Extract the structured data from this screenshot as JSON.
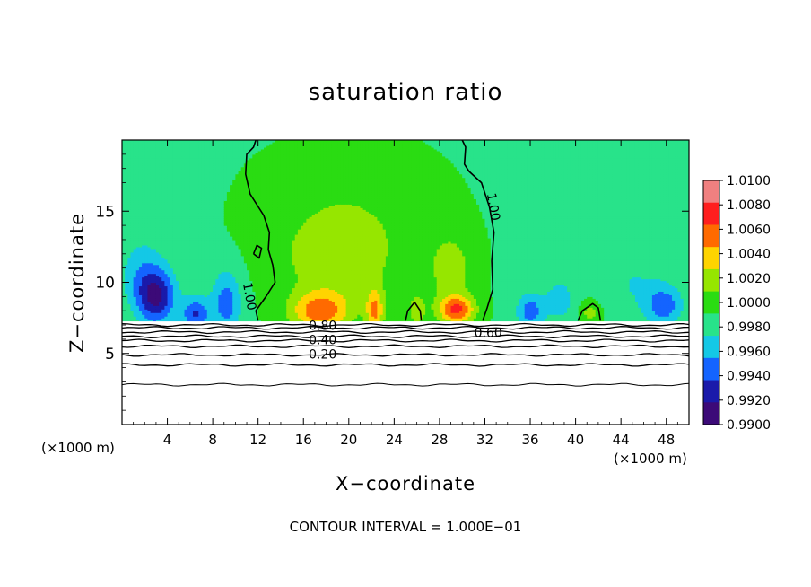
{
  "chart_data": {
    "type": "heatmap",
    "title": "saturation ratio",
    "xlabel": "X−coordinate",
    "ylabel": "Z−coordinate",
    "x_unit_label": "(×1000 m)",
    "xlim": [
      0,
      50
    ],
    "ylim": [
      0,
      20
    ],
    "x_ticks": [
      4,
      8,
      12,
      16,
      20,
      24,
      28,
      32,
      36,
      40,
      44,
      48
    ],
    "y_ticks": [
      5,
      10,
      15
    ],
    "footer": "CONTOUR INTERVAL = 1.000E−01",
    "colorbar": {
      "levels": [
        "1.0100",
        "1.0080",
        "1.0060",
        "1.0040",
        "1.0020",
        "1.0000",
        "0.9980",
        "0.9960",
        "0.9940",
        "0.9920",
        "0.9900"
      ],
      "colors": [
        "#f08080",
        "#ff1e1e",
        "#ff6a00",
        "#ffd400",
        "#96e600",
        "#2adc12",
        "#28e38a",
        "#14c8e6",
        "#1464ff",
        "#1a1aaa",
        "#3c0a78"
      ],
      "values": [
        1.01,
        1.008,
        1.006,
        1.004,
        1.002,
        1.0,
        0.998,
        0.996,
        0.994,
        0.992,
        0.99
      ]
    },
    "contour_labels": [
      {
        "text": "1.00",
        "x": 11.2,
        "z": 9.0,
        "angle": 80
      },
      {
        "text": "1.00",
        "x": 32.7,
        "z": 15.3,
        "angle": 80
      },
      {
        "text": "0.80",
        "x": 17.7,
        "z": 6.9,
        "angle": 0
      },
      {
        "text": "0.60",
        "x": 32.3,
        "z": 6.4,
        "angle": 0
      },
      {
        "text": "0.40",
        "x": 17.7,
        "z": 5.9,
        "angle": 0
      },
      {
        "text": "0.20",
        "x": 17.7,
        "z": 4.9,
        "angle": 0
      }
    ],
    "features": [
      {
        "x": 3.0,
        "z": 9.0,
        "value": 0.992,
        "sx": 1.7,
        "sz": 1.9
      },
      {
        "x": 6.5,
        "z": 7.8,
        "value": 0.994,
        "sx": 1.2,
        "sz": 1.2
      },
      {
        "x": 9.2,
        "z": 8.6,
        "value": 0.995,
        "sx": 1.3,
        "sz": 2.3
      },
      {
        "x": 1.8,
        "z": 10.8,
        "value": 0.997,
        "sx": 2.0,
        "sz": 2.5
      },
      {
        "x": 36.0,
        "z": 8.0,
        "value": 0.995,
        "sx": 1.2,
        "sz": 1.3
      },
      {
        "x": 38.6,
        "z": 8.8,
        "value": 0.997,
        "sx": 1.4,
        "sz": 1.6
      },
      {
        "x": 47.8,
        "z": 8.4,
        "value": 0.995,
        "sx": 1.6,
        "sz": 1.4
      },
      {
        "x": 45.0,
        "z": 10.0,
        "value": 0.998,
        "sx": 3.0,
        "sz": 2.5
      },
      {
        "x": 17.5,
        "z": 8.0,
        "value": 1.007,
        "sx": 2.6,
        "sz": 1.4
      },
      {
        "x": 22.3,
        "z": 8.0,
        "value": 1.006,
        "sx": 0.8,
        "sz": 1.6
      },
      {
        "x": 29.5,
        "z": 8.1,
        "value": 1.008,
        "sx": 1.6,
        "sz": 1.0
      },
      {
        "x": 26.0,
        "z": 8.0,
        "value": 1.0025,
        "sx": 0.9,
        "sz": 1.5
      },
      {
        "x": 19.0,
        "z": 11.5,
        "value": 1.003,
        "sx": 5.0,
        "sz": 3.0
      },
      {
        "x": 29.0,
        "z": 11.0,
        "value": 1.003,
        "sx": 2.0,
        "sz": 2.5
      },
      {
        "x": 20.0,
        "z": 15.0,
        "value": 1.0015,
        "sx": 7.0,
        "sz": 4.0
      },
      {
        "x": 41.3,
        "z": 7.9,
        "value": 1.003,
        "sx": 0.9,
        "sz": 0.8
      }
    ],
    "terrain_top_z": 7.25,
    "terrain_levels_z": [
      2.8,
      4.2,
      4.9,
      5.5,
      5.9,
      6.2,
      6.5,
      6.8,
      7.0
    ]
  }
}
